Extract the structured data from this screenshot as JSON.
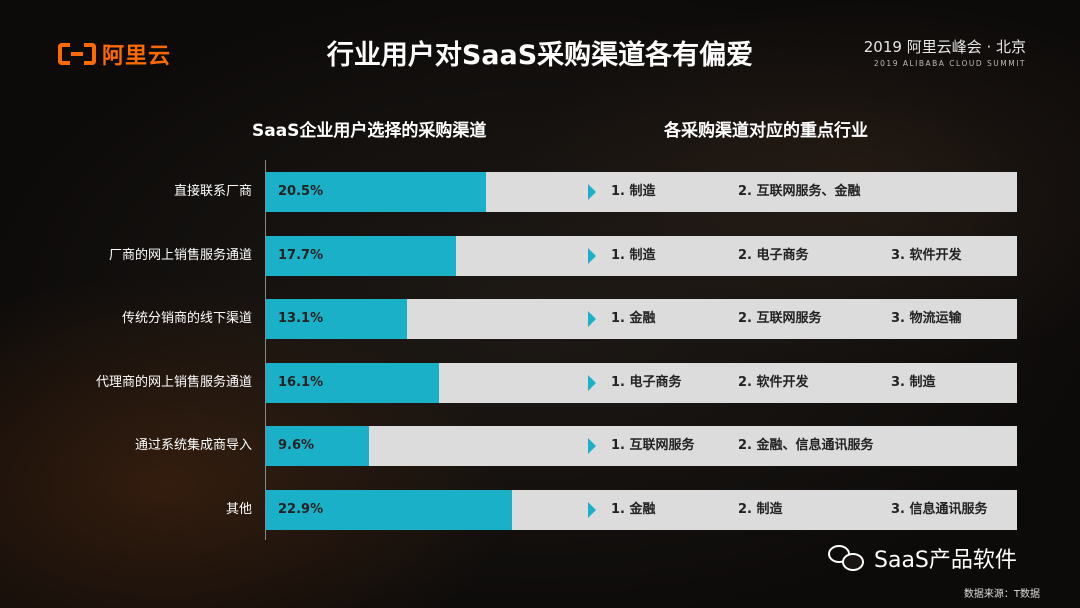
{
  "logo": {
    "text": "阿里云",
    "color": "#ff6a00"
  },
  "title": "行业用户对SaaS采购渠道各有偏爱",
  "summit": {
    "line1": "2019 阿里云峰会 · 北京",
    "line2": "2019 ALIBABA CLOUD SUMMIT"
  },
  "chart_data": {
    "type": "bar",
    "orientation": "horizontal",
    "title": "SaaS企业用户选择的采购渠道",
    "categories": [
      "直接联系厂商",
      "厂商的网上销售服务通道",
      "传统分销商的线下渠道",
      "代理商的网上销售服务通道",
      "通过系统集成商导入",
      "其他"
    ],
    "values": [
      20.5,
      17.7,
      13.1,
      16.1,
      9.6,
      22.9
    ],
    "value_labels": [
      "20.5%",
      "17.7%",
      "13.1%",
      "16.1%",
      "9.6%",
      "22.9%"
    ],
    "xlim": [
      0,
      70
    ],
    "bar_color": "#1ab0c8",
    "track_color": "#dcdcdc"
  },
  "industries": {
    "title": "各采购渠道对应的重点行业",
    "rows": [
      [
        "1. 制造",
        "2. 互联网服务、金融",
        ""
      ],
      [
        "1. 制造",
        "2. 电子商务",
        "3. 软件开发"
      ],
      [
        "1. 金融",
        "2. 互联网服务",
        "3. 物流运输"
      ],
      [
        "1. 电子商务",
        "2. 软件开发",
        "3. 制造"
      ],
      [
        "1. 互联网服务",
        "2. 金融、信息通讯服务",
        ""
      ],
      [
        "1. 金融",
        "2. 制造",
        "3. 信息通讯服务"
      ]
    ]
  },
  "watermark": {
    "text": "SaaS产品软件",
    "icon": "wechat-icon"
  },
  "source": "数据来源：T数据"
}
